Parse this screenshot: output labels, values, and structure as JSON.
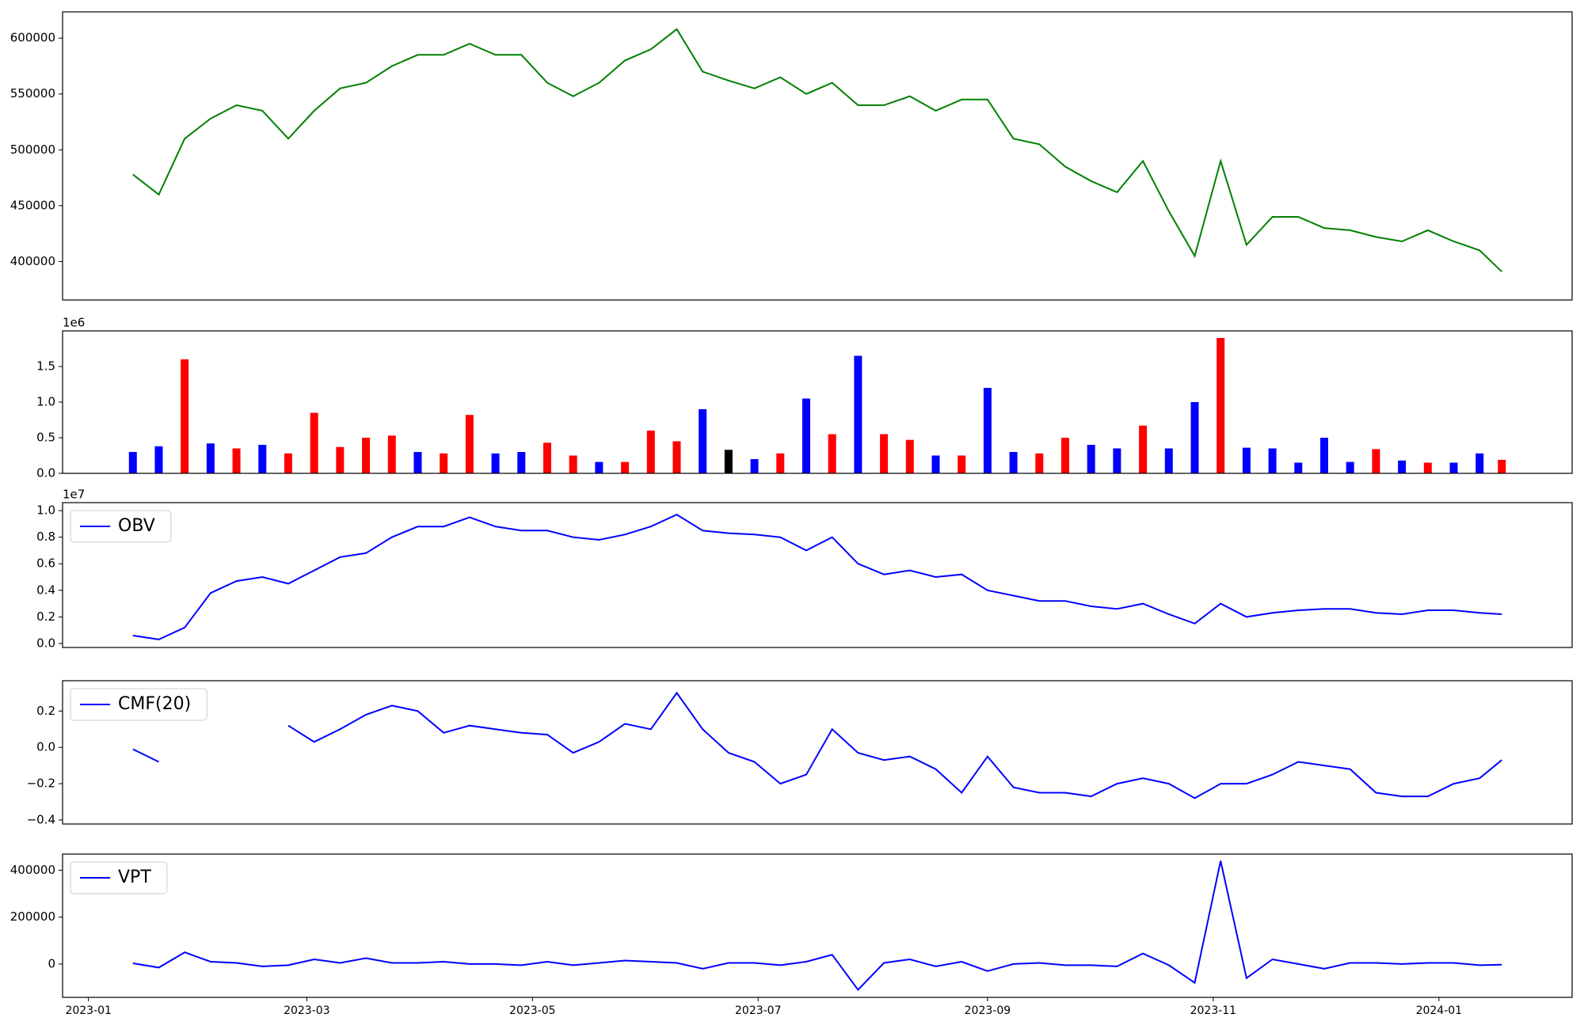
{
  "chart_data": [
    {
      "type": "line",
      "color": "#008000",
      "x": [
        "2023-01-13",
        "2023-01-20",
        "2023-01-27",
        "2023-02-03",
        "2023-02-10",
        "2023-02-17",
        "2023-02-24",
        "2023-03-03",
        "2023-03-10",
        "2023-03-17",
        "2023-03-24",
        "2023-03-31",
        "2023-04-07",
        "2023-04-14",
        "2023-04-21",
        "2023-04-28",
        "2023-05-05",
        "2023-05-12",
        "2023-05-19",
        "2023-05-26",
        "2023-06-02",
        "2023-06-09",
        "2023-06-16",
        "2023-06-23",
        "2023-06-30",
        "2023-07-07",
        "2023-07-14",
        "2023-07-21",
        "2023-07-28",
        "2023-08-04",
        "2023-08-11",
        "2023-08-18",
        "2023-08-25",
        "2023-09-01",
        "2023-09-08",
        "2023-09-15",
        "2023-09-22",
        "2023-09-29",
        "2023-10-06",
        "2023-10-13",
        "2023-10-20",
        "2023-10-27",
        "2023-11-03",
        "2023-11-10",
        "2023-11-17",
        "2023-11-24",
        "2023-12-01",
        "2023-12-08",
        "2023-12-15",
        "2023-12-22",
        "2023-12-29",
        "2024-01-05",
        "2024-01-12",
        "2024-01-18"
      ],
      "values": [
        478000,
        460000,
        510000,
        528000,
        540000,
        535000,
        510000,
        535000,
        555000,
        560000,
        575000,
        585000,
        585000,
        595000,
        585000,
        585000,
        560000,
        548000,
        560000,
        580000,
        590000,
        608000,
        570000,
        562000,
        555000,
        565000,
        550000,
        560000,
        540000,
        540000,
        548000,
        535000,
        545000,
        545000,
        510000,
        505000,
        485000,
        472000,
        462000,
        490000,
        445000,
        405000,
        490000,
        415000,
        440000,
        440000,
        430000,
        428000,
        422000,
        418000,
        428000,
        418000,
        410000,
        391000
      ],
      "xlim": [
        "2022-12-25",
        "2024-02-06"
      ],
      "ylim": [
        365600,
        623500
      ],
      "yticks": [
        400000,
        450000,
        500000,
        550000,
        600000
      ]
    },
    {
      "type": "bar",
      "offset_text": "1e6",
      "x": [
        "2023-01-13",
        "2023-01-20",
        "2023-01-27",
        "2023-02-03",
        "2023-02-10",
        "2023-02-17",
        "2023-02-24",
        "2023-03-03",
        "2023-03-10",
        "2023-03-17",
        "2023-03-24",
        "2023-03-31",
        "2023-04-07",
        "2023-04-14",
        "2023-04-21",
        "2023-04-28",
        "2023-05-05",
        "2023-05-12",
        "2023-05-19",
        "2023-05-26",
        "2023-06-02",
        "2023-06-09",
        "2023-06-16",
        "2023-06-23",
        "2023-06-30",
        "2023-07-07",
        "2023-07-14",
        "2023-07-21",
        "2023-07-28",
        "2023-08-04",
        "2023-08-11",
        "2023-08-18",
        "2023-08-25",
        "2023-09-01",
        "2023-09-08",
        "2023-09-15",
        "2023-09-22",
        "2023-09-29",
        "2023-10-06",
        "2023-10-13",
        "2023-10-20",
        "2023-10-27",
        "2023-11-03",
        "2023-11-10",
        "2023-11-17",
        "2023-11-24",
        "2023-12-01",
        "2023-12-08",
        "2023-12-15",
        "2023-12-22",
        "2023-12-29",
        "2024-01-05",
        "2024-01-12",
        "2024-01-18"
      ],
      "values": [
        300000,
        380000,
        1600000,
        420000,
        350000,
        400000,
        280000,
        850000,
        370000,
        500000,
        530000,
        300000,
        280000,
        820000,
        280000,
        300000,
        430000,
        250000,
        160000,
        160000,
        600000,
        450000,
        900000,
        330000,
        200000,
        280000,
        1050000,
        550000,
        1650000,
        550000,
        470000,
        250000,
        250000,
        1200000,
        300000,
        280000,
        500000,
        400000,
        350000,
        670000,
        350000,
        1000000,
        1900000,
        360000,
        350000,
        150000,
        500000,
        160000,
        340000,
        180000,
        150000,
        150000,
        280000,
        190000
      ],
      "colors": [
        "#0000ff",
        "#0000ff",
        "#ff0000",
        "#0000ff",
        "#ff0000",
        "#0000ff",
        "#ff0000",
        "#ff0000",
        "#ff0000",
        "#ff0000",
        "#ff0000",
        "#0000ff",
        "#ff0000",
        "#ff0000",
        "#0000ff",
        "#0000ff",
        "#ff0000",
        "#ff0000",
        "#0000ff",
        "#ff0000",
        "#ff0000",
        "#ff0000",
        "#0000ff",
        "#000000",
        "#0000ff",
        "#ff0000",
        "#0000ff",
        "#ff0000",
        "#0000ff",
        "#ff0000",
        "#ff0000",
        "#0000ff",
        "#ff0000",
        "#0000ff",
        "#0000ff",
        "#ff0000",
        "#ff0000",
        "#0000ff",
        "#0000ff",
        "#ff0000",
        "#0000ff",
        "#0000ff",
        "#ff0000",
        "#0000ff",
        "#0000ff",
        "#0000ff",
        "#0000ff",
        "#0000ff",
        "#ff0000",
        "#0000ff",
        "#ff0000",
        "#0000ff",
        "#0000ff",
        "#ff0000"
      ],
      "xlim": [
        "2022-12-25",
        "2024-02-06"
      ],
      "ylim": [
        0,
        2000000
      ],
      "yticks": [
        {
          "value": 0,
          "label": "0.0"
        },
        {
          "value": 500000,
          "label": "0.5"
        },
        {
          "value": 1000000,
          "label": "1.0"
        },
        {
          "value": 1500000,
          "label": "1.5"
        }
      ]
    },
    {
      "type": "line",
      "offset_text": "1e7",
      "legend": "upper left",
      "x": [
        "2023-01-13",
        "2023-01-20",
        "2023-01-27",
        "2023-02-03",
        "2023-02-10",
        "2023-02-17",
        "2023-02-24",
        "2023-03-03",
        "2023-03-10",
        "2023-03-17",
        "2023-03-24",
        "2023-03-31",
        "2023-04-07",
        "2023-04-14",
        "2023-04-21",
        "2023-04-28",
        "2023-05-05",
        "2023-05-12",
        "2023-05-19",
        "2023-05-26",
        "2023-06-02",
        "2023-06-09",
        "2023-06-16",
        "2023-06-23",
        "2023-06-30",
        "2023-07-07",
        "2023-07-14",
        "2023-07-21",
        "2023-07-28",
        "2023-08-04",
        "2023-08-11",
        "2023-08-18",
        "2023-08-25",
        "2023-09-01",
        "2023-09-08",
        "2023-09-15",
        "2023-09-22",
        "2023-09-29",
        "2023-10-06",
        "2023-10-13",
        "2023-10-20",
        "2023-10-27",
        "2023-11-03",
        "2023-11-10",
        "2023-11-17",
        "2023-11-24",
        "2023-12-01",
        "2023-12-08",
        "2023-12-15",
        "2023-12-22",
        "2023-12-29",
        "2024-01-05",
        "2024-01-12",
        "2024-01-18"
      ],
      "series": [
        {
          "name": "OBV",
          "color": "#0000ff",
          "values": [
            600000,
            300000,
            1200000,
            3800000,
            4700000,
            5000000,
            4500000,
            5500000,
            6500000,
            6800000,
            8000000,
            8800000,
            8800000,
            9500000,
            8800000,
            8500000,
            8500000,
            8000000,
            7800000,
            8200000,
            8800000,
            9700000,
            8500000,
            8300000,
            8200000,
            8000000,
            7000000,
            8000000,
            6000000,
            5200000,
            5500000,
            5000000,
            5200000,
            4000000,
            3600000,
            3200000,
            3200000,
            2800000,
            2600000,
            3000000,
            2200000,
            1500000,
            3000000,
            2000000,
            2300000,
            2500000,
            2600000,
            2600000,
            2300000,
            2200000,
            2500000,
            2500000,
            2300000,
            2200000
          ]
        }
      ],
      "xlim": [
        "2022-12-25",
        "2024-02-06"
      ],
      "ylim": [
        -300000,
        10600000
      ],
      "yticks": [
        {
          "value": 0,
          "label": "0.0"
        },
        {
          "value": 2000000,
          "label": "0.2"
        },
        {
          "value": 4000000,
          "label": "0.4"
        },
        {
          "value": 6000000,
          "label": "0.6"
        },
        {
          "value": 8000000,
          "label": "0.8"
        },
        {
          "value": 10000000,
          "label": "1.0"
        }
      ]
    },
    {
      "type": "line",
      "legend": "upper left",
      "x": [
        "2023-01-13",
        "2023-01-20",
        "2023-01-27",
        "2023-02-03",
        "2023-02-10",
        "2023-02-17",
        "2023-02-24",
        "2023-03-03",
        "2023-03-10",
        "2023-03-17",
        "2023-03-24",
        "2023-03-31",
        "2023-04-07",
        "2023-04-14",
        "2023-04-21",
        "2023-04-28",
        "2023-05-05",
        "2023-05-12",
        "2023-05-19",
        "2023-05-26",
        "2023-06-02",
        "2023-06-09",
        "2023-06-16",
        "2023-06-23",
        "2023-06-30",
        "2023-07-07",
        "2023-07-14",
        "2023-07-21",
        "2023-07-28",
        "2023-08-04",
        "2023-08-11",
        "2023-08-18",
        "2023-08-25",
        "2023-09-01",
        "2023-09-08",
        "2023-09-15",
        "2023-09-22",
        "2023-09-29",
        "2023-10-06",
        "2023-10-13",
        "2023-10-20",
        "2023-10-27",
        "2023-11-03",
        "2023-11-10",
        "2023-11-17",
        "2023-11-24",
        "2023-12-01",
        "2023-12-08",
        "2023-12-15",
        "2023-12-22",
        "2023-12-29",
        "2024-01-05",
        "2024-01-12",
        "2024-01-18"
      ],
      "series": [
        {
          "name": "CMF(20)",
          "color": "#0000ff",
          "values": [
            -0.01,
            -0.08,
            null,
            null,
            null,
            null,
            0.12,
            0.03,
            0.1,
            0.18,
            0.23,
            0.2,
            0.08,
            0.12,
            0.1,
            0.08,
            0.07,
            -0.03,
            0.03,
            0.13,
            0.1,
            0.3,
            0.1,
            -0.03,
            -0.08,
            -0.2,
            -0.15,
            0.1,
            -0.03,
            -0.07,
            -0.05,
            -0.12,
            -0.25,
            -0.05,
            -0.22,
            -0.25,
            -0.25,
            -0.27,
            -0.2,
            -0.17,
            -0.2,
            -0.28,
            -0.2,
            -0.2,
            -0.15,
            -0.08,
            -0.1,
            -0.12,
            -0.25,
            -0.27,
            -0.27,
            -0.2,
            -0.17,
            -0.07
          ]
        }
      ],
      "xlim": [
        "2022-12-25",
        "2024-02-06"
      ],
      "ylim": [
        -0.422,
        0.367
      ],
      "yticks": [
        {
          "value": -0.4,
          "label": "−0.4"
        },
        {
          "value": -0.2,
          "label": "−0.2"
        },
        {
          "value": 0,
          "label": "0.0"
        },
        {
          "value": 0.2,
          "label": "0.2"
        }
      ]
    },
    {
      "type": "line",
      "legend": "upper left",
      "x": [
        "2023-01-13",
        "2023-01-20",
        "2023-01-27",
        "2023-02-03",
        "2023-02-10",
        "2023-02-17",
        "2023-02-24",
        "2023-03-03",
        "2023-03-10",
        "2023-03-17",
        "2023-03-24",
        "2023-03-31",
        "2023-04-07",
        "2023-04-14",
        "2023-04-21",
        "2023-04-28",
        "2023-05-05",
        "2023-05-12",
        "2023-05-19",
        "2023-05-26",
        "2023-06-02",
        "2023-06-09",
        "2023-06-16",
        "2023-06-23",
        "2023-06-30",
        "2023-07-07",
        "2023-07-14",
        "2023-07-21",
        "2023-07-28",
        "2023-08-04",
        "2023-08-11",
        "2023-08-18",
        "2023-08-25",
        "2023-09-01",
        "2023-09-08",
        "2023-09-15",
        "2023-09-22",
        "2023-09-29",
        "2023-10-06",
        "2023-10-13",
        "2023-10-20",
        "2023-10-27",
        "2023-11-03",
        "2023-11-10",
        "2023-11-17",
        "2023-11-24",
        "2023-12-01",
        "2023-12-08",
        "2023-12-15",
        "2023-12-22",
        "2023-12-29",
        "2024-01-05",
        "2024-01-12",
        "2024-01-18"
      ],
      "series": [
        {
          "name": "VPT",
          "color": "#0000ff",
          "values": [
            3000,
            -15000,
            50000,
            10000,
            5000,
            -10000,
            -5000,
            20000,
            5000,
            25000,
            5000,
            5000,
            10000,
            0,
            0,
            -5000,
            10000,
            -5000,
            5000,
            15000,
            10000,
            5000,
            -20000,
            5000,
            5000,
            -5000,
            10000,
            40000,
            -110000,
            5000,
            20000,
            -10000,
            10000,
            -30000,
            0,
            5000,
            -5000,
            -5000,
            -10000,
            45000,
            -5000,
            -80000,
            440000,
            -60000,
            20000,
            0,
            -20000,
            5000,
            5000,
            0,
            5000,
            5000,
            -5000,
            -3000
          ]
        }
      ],
      "xlim": [
        "2022-12-25",
        "2024-02-06"
      ],
      "ylim": [
        -142000,
        469000
      ],
      "yticks": [
        0,
        200000,
        400000
      ],
      "xticks": [
        "2023-01",
        "2023-03",
        "2023-05",
        "2023-07",
        "2023-09",
        "2023-11",
        "2024-01"
      ]
    }
  ]
}
